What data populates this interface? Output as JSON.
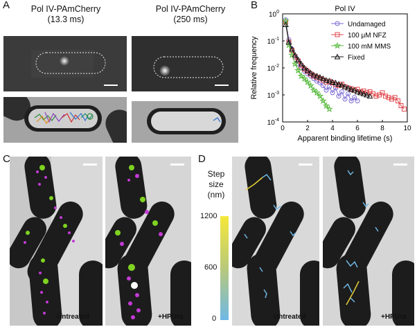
{
  "panels": {
    "a": {
      "label": "A",
      "left_title": [
        "Pol IV-PAmCherry",
        "(13.3 ms)"
      ],
      "right_title": [
        "Pol IV-PAmCherry",
        "(250 ms)"
      ]
    },
    "b": {
      "label": "B"
    },
    "c": {
      "label": "C",
      "left_caption": "Untreated",
      "right_caption": "+HPUra"
    },
    "d": {
      "label": "D",
      "left_caption": "Untreated",
      "right_caption": "+HPUra",
      "colorbar_title": [
        "Step",
        "size",
        "(nm)"
      ],
      "colorbar_ticks": [
        "1200",
        "600",
        "0"
      ],
      "colorbar_colors": [
        "#f5e83a",
        "#b9c97a",
        "#6fb8e6"
      ]
    }
  },
  "chart_data": {
    "type": "line",
    "title": "Pol IV",
    "xlabel": "Apparent binding lifetime (s)",
    "ylabel": "Relative frequency",
    "xlim": [
      0,
      10
    ],
    "ylim": [
      0.0001,
      1
    ],
    "yscale": "log",
    "x_ticks": [
      "0",
      "2",
      "4",
      "6",
      "8",
      "10"
    ],
    "y_ticks": [
      {
        "base": "10",
        "exp": "-4",
        "value": 0.0001
      },
      {
        "base": "10",
        "exp": "-3",
        "value": 0.001
      },
      {
        "base": "10",
        "exp": "-2",
        "value": 0.01
      },
      {
        "base": "10",
        "exp": "-1",
        "value": 0.1
      },
      {
        "base": "10",
        "exp": "0",
        "value": 1
      }
    ],
    "legend_position": "top-right",
    "series": [
      {
        "name": "Undamaged",
        "color": "#7b6bd6",
        "marker": "circle",
        "x": [
          0.25,
          0.5,
          0.75,
          1.0,
          1.25,
          1.5,
          1.75,
          2.0,
          2.25,
          2.5,
          2.75,
          3.0,
          3.25,
          3.5,
          3.75,
          4.0,
          4.25,
          4.5,
          4.75,
          5.0,
          5.25,
          5.5,
          5.75,
          6.0
        ],
        "y": [
          0.6,
          0.11,
          0.05,
          0.025,
          0.014,
          0.01,
          0.0075,
          0.006,
          0.005,
          0.004,
          0.0032,
          0.0028,
          0.0022,
          0.0015,
          0.002,
          0.0012,
          0.0018,
          0.0009,
          0.0013,
          0.0007,
          0.0011,
          0.0006,
          0.0008,
          0.0006
        ]
      },
      {
        "name": "100 μM NFZ",
        "color": "#e0474c",
        "marker": "square",
        "x": [
          0.25,
          0.5,
          0.75,
          1.0,
          1.25,
          1.5,
          1.75,
          2.0,
          2.25,
          2.5,
          2.75,
          3.0,
          3.25,
          3.5,
          3.75,
          4.0,
          4.25,
          4.5,
          4.75,
          5.0,
          5.25,
          5.5,
          5.75,
          6.0,
          6.25,
          6.5,
          6.75,
          7.0,
          7.25,
          7.5,
          7.75,
          8.0,
          8.25,
          8.5,
          8.75,
          9.0,
          9.25,
          9.5,
          9.75
        ],
        "y": [
          0.5,
          0.09,
          0.045,
          0.026,
          0.018,
          0.012,
          0.009,
          0.0075,
          0.006,
          0.005,
          0.0045,
          0.004,
          0.0035,
          0.003,
          0.0032,
          0.0028,
          0.0024,
          0.0022,
          0.0025,
          0.002,
          0.0018,
          0.0017,
          0.0015,
          0.0016,
          0.0013,
          0.0014,
          0.0012,
          0.0013,
          0.0011,
          0.0009,
          0.001,
          0.0012,
          0.0009,
          0.0008,
          0.0007,
          0.0008,
          0.0006,
          0.0004,
          0.0003
        ]
      },
      {
        "name": "100 mM MMS",
        "color": "#55b93a",
        "marker": "star",
        "x": [
          0.25,
          0.5,
          0.75,
          1.0,
          1.25,
          1.5,
          1.75,
          2.0,
          2.25,
          2.5,
          2.75,
          3.0,
          3.25,
          3.5,
          3.75
        ],
        "y": [
          0.55,
          0.07,
          0.03,
          0.014,
          0.008,
          0.005,
          0.004,
          0.003,
          0.0022,
          0.0015,
          0.0012,
          0.0009,
          0.0006,
          0.0004,
          0.0003
        ]
      },
      {
        "name": "Fixed",
        "color": "#111111",
        "marker": "triangle",
        "x": [
          0.25,
          0.5,
          0.75,
          1.0,
          1.25,
          1.5,
          1.75,
          2.0,
          2.25,
          2.5,
          2.75,
          3.0,
          3.25,
          3.5,
          3.75,
          4.0,
          4.25,
          4.5,
          4.75,
          5.0,
          5.25,
          5.5,
          5.75,
          6.0,
          6.25,
          6.5,
          6.75,
          7.0
        ],
        "y": [
          0.4,
          0.09,
          0.05,
          0.03,
          0.02,
          0.014,
          0.01,
          0.008,
          0.0065,
          0.0055,
          0.005,
          0.0045,
          0.004,
          0.0035,
          0.0033,
          0.003,
          0.0028,
          0.0025,
          0.0023,
          0.002,
          0.0018,
          0.0016,
          0.0015,
          0.0013,
          0.0012,
          0.0011,
          0.001,
          0.0009
        ]
      }
    ]
  }
}
